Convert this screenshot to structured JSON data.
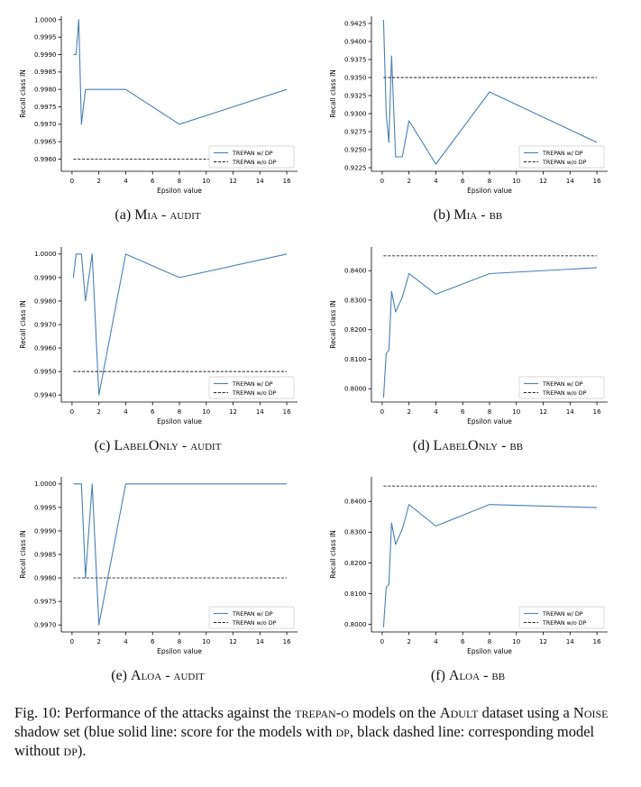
{
  "figure": {
    "caption": {
      "label": "Fig. 10:",
      "text_1": "Performance of the attacks against the",
      "sc_1": "trepan-o",
      "text_2": "models on the",
      "sc_2": "Adult",
      "text_3": "dataset using a",
      "sc_3": "Noise",
      "text_4": "shadow set (blue solid line: score for the models with",
      "sc_4": "dp",
      "text_5": ", black dashed line: corresponding model without",
      "sc_5": "dp",
      "text_6": ")."
    }
  },
  "colors": {
    "dp_line": "#4a7fb5",
    "nodp_line": "#222222"
  },
  "chart_data": [
    {
      "id": "a",
      "type": "line",
      "subcaption": {
        "letter": "(a)",
        "attack": "Mia",
        "sep": " - ",
        "setting": "audit"
      },
      "xlabel": "Epsilon value",
      "ylabel": "Recall class IN",
      "xlim": [
        -0.8,
        16.8
      ],
      "ylim": [
        0.99565,
        1.0001
      ],
      "xticks": [
        0,
        2,
        4,
        6,
        8,
        10,
        12,
        14,
        16
      ],
      "yticks": [
        0.996,
        0.9965,
        0.997,
        0.9975,
        0.998,
        0.9985,
        0.999,
        0.9995,
        1.0
      ],
      "ytick_labels": [
        "0.9960",
        "0.9965",
        "0.9970",
        "0.9975",
        "0.9980",
        "0.9985",
        "0.9990",
        "0.9995",
        "1.0000"
      ],
      "legend_position": "lower-right",
      "series": [
        {
          "name": "TREPAN w/ DP",
          "style": "solid",
          "x": [
            0.1,
            0.3,
            0.5,
            0.7,
            1,
            1.5,
            2,
            4,
            8,
            16
          ],
          "y": [
            0.999,
            0.999,
            1.0,
            0.997,
            0.998,
            0.998,
            0.998,
            0.998,
            0.997,
            0.998
          ]
        },
        {
          "name": "TREPAN w/o DP",
          "style": "dashed",
          "x": [
            0.1,
            16
          ],
          "y": [
            0.996,
            0.996
          ]
        }
      ]
    },
    {
      "id": "b",
      "type": "line",
      "subcaption": {
        "letter": "(b)",
        "attack": "Mia",
        "sep": " - ",
        "setting": "bb"
      },
      "xlabel": "Epsilon value",
      "ylabel": "Recall class IN",
      "xlim": [
        -0.8,
        16.8
      ],
      "ylim": [
        0.922,
        0.9435
      ],
      "xticks": [
        0,
        2,
        4,
        6,
        8,
        10,
        12,
        14,
        16
      ],
      "yticks": [
        0.9225,
        0.925,
        0.9275,
        0.93,
        0.9325,
        0.935,
        0.9375,
        0.94,
        0.9425
      ],
      "ytick_labels": [
        "0.9225",
        "0.9250",
        "0.9275",
        "0.9300",
        "0.9325",
        "0.9350",
        "0.9375",
        "0.9400",
        "0.9425"
      ],
      "legend_position": "lower-right",
      "series": [
        {
          "name": "TREPAN w/ DP",
          "style": "solid",
          "x": [
            0.1,
            0.3,
            0.5,
            0.7,
            1,
            1.5,
            2,
            4,
            8,
            16
          ],
          "y": [
            0.943,
            0.93,
            0.926,
            0.938,
            0.924,
            0.924,
            0.929,
            0.923,
            0.933,
            0.926
          ]
        },
        {
          "name": "TREPAN w/o DP",
          "style": "dashed",
          "x": [
            0.1,
            16
          ],
          "y": [
            0.935,
            0.935
          ]
        }
      ]
    },
    {
      "id": "c",
      "type": "line",
      "subcaption": {
        "letter": "(c)",
        "attack": "LabelOnly",
        "sep": " - ",
        "setting": "audit"
      },
      "xlabel": "Epsilon value",
      "ylabel": "Recall class IN",
      "xlim": [
        -0.8,
        16.8
      ],
      "ylim": [
        0.9937,
        1.0003
      ],
      "xticks": [
        0,
        2,
        4,
        6,
        8,
        10,
        12,
        14,
        16
      ],
      "yticks": [
        0.994,
        0.995,
        0.996,
        0.997,
        0.998,
        0.999,
        1.0
      ],
      "ytick_labels": [
        "0.9940",
        "0.9950",
        "0.9960",
        "0.9970",
        "0.9980",
        "0.9990",
        "1.0000"
      ],
      "legend_position": "lower-right",
      "series": [
        {
          "name": "TREPAN w/ DP",
          "style": "solid",
          "x": [
            0.1,
            0.3,
            0.5,
            0.7,
            1,
            1.5,
            2,
            4,
            8,
            16
          ],
          "y": [
            0.999,
            1.0,
            1.0,
            1.0,
            0.998,
            1.0,
            0.994,
            1.0,
            0.999,
            1.0
          ]
        },
        {
          "name": "TREPAN w/o DP",
          "style": "dashed",
          "x": [
            0.1,
            16
          ],
          "y": [
            0.995,
            0.995
          ]
        }
      ]
    },
    {
      "id": "d",
      "type": "line",
      "subcaption": {
        "letter": "(d)",
        "attack": "LabelOnly",
        "sep": " - ",
        "setting": "bb"
      },
      "xlabel": "Epsilon value",
      "ylabel": "Recall class IN",
      "xlim": [
        -0.8,
        16.8
      ],
      "ylim": [
        0.7955,
        0.848
      ],
      "xticks": [
        0,
        2,
        4,
        6,
        8,
        10,
        12,
        14,
        16
      ],
      "yticks": [
        0.8,
        0.81,
        0.82,
        0.83,
        0.84
      ],
      "ytick_labels": [
        "0.8000",
        "0.8100",
        "0.8200",
        "0.8300",
        "0.8400"
      ],
      "legend_position": "lower-right",
      "series": [
        {
          "name": "TREPAN w/ DP",
          "style": "solid",
          "x": [
            0.1,
            0.3,
            0.5,
            0.7,
            1,
            1.5,
            2,
            4,
            8,
            16
          ],
          "y": [
            0.797,
            0.812,
            0.813,
            0.833,
            0.826,
            0.831,
            0.839,
            0.832,
            0.839,
            0.841
          ]
        },
        {
          "name": "TREPAN w/o DP",
          "style": "dashed",
          "x": [
            0.1,
            16
          ],
          "y": [
            0.845,
            0.845
          ]
        }
      ]
    },
    {
      "id": "e",
      "type": "line",
      "subcaption": {
        "letter": "(e)",
        "attack": "Aloa",
        "sep": " - ",
        "setting": "audit"
      },
      "xlabel": "Epsilon value",
      "ylabel": "Recall class IN",
      "xlim": [
        -0.8,
        16.8
      ],
      "ylim": [
        0.99685,
        1.00015
      ],
      "xticks": [
        0,
        2,
        4,
        6,
        8,
        10,
        12,
        14,
        16
      ],
      "yticks": [
        0.997,
        0.9975,
        0.998,
        0.9985,
        0.999,
        0.9995,
        1.0
      ],
      "ytick_labels": [
        "0.9970",
        "0.9975",
        "0.9980",
        "0.9985",
        "0.9990",
        "0.9995",
        "1.0000"
      ],
      "legend_position": "lower-right",
      "series": [
        {
          "name": "TREPAN w/ DP",
          "style": "solid",
          "x": [
            0.1,
            0.3,
            0.5,
            0.7,
            1,
            1.5,
            2,
            4,
            8,
            16
          ],
          "y": [
            1.0,
            1.0,
            1.0,
            1.0,
            0.998,
            1.0,
            0.997,
            1.0,
            1.0,
            1.0
          ]
        },
        {
          "name": "TREPAN w/o DP",
          "style": "dashed",
          "x": [
            0.1,
            16
          ],
          "y": [
            0.998,
            0.998
          ]
        }
      ]
    },
    {
      "id": "f",
      "type": "line",
      "subcaption": {
        "letter": "(f)",
        "attack": "Aloa",
        "sep": " - ",
        "setting": "bb"
      },
      "xlabel": "Epsilon value",
      "ylabel": "Recall class IN",
      "xlim": [
        -0.8,
        16.8
      ],
      "ylim": [
        0.7975,
        0.848
      ],
      "xticks": [
        0,
        2,
        4,
        6,
        8,
        10,
        12,
        14,
        16
      ],
      "yticks": [
        0.8,
        0.81,
        0.82,
        0.83,
        0.84
      ],
      "ytick_labels": [
        "0.8000",
        "0.8100",
        "0.8200",
        "0.8300",
        "0.8400"
      ],
      "legend_position": "lower-right",
      "series": [
        {
          "name": "TREPAN w/ DP",
          "style": "solid",
          "x": [
            0.1,
            0.3,
            0.5,
            0.7,
            1,
            1.5,
            2,
            4,
            8,
            16
          ],
          "y": [
            0.799,
            0.812,
            0.813,
            0.833,
            0.826,
            0.831,
            0.839,
            0.832,
            0.839,
            0.838
          ]
        },
        {
          "name": "TREPAN w/o DP",
          "style": "dashed",
          "x": [
            0.1,
            16
          ],
          "y": [
            0.845,
            0.845
          ]
        }
      ]
    }
  ]
}
